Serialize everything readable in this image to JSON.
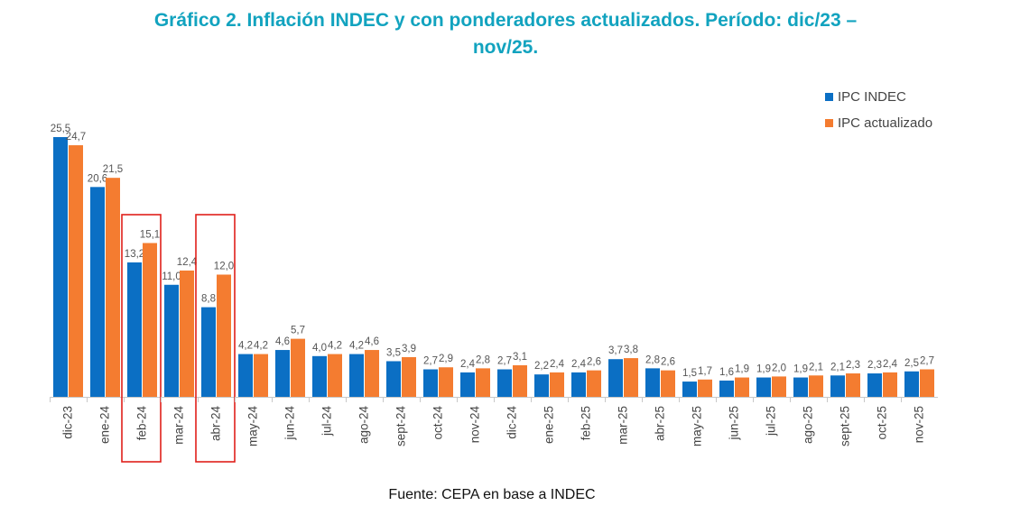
{
  "title": {
    "line1": "Gráfico 2. Inflación INDEC y con ponderadores actualizados. Período: dic/23 –",
    "line2": "nov/25."
  },
  "source": "Fuente: CEPA en base a INDEC",
  "colors": {
    "title": "#12a3bf",
    "indec": "#0b6fc4",
    "actualizado": "#f47c30",
    "highlight": "#e0201b"
  },
  "chart_data": {
    "type": "bar",
    "categories": [
      "dic-23",
      "ene-24",
      "feb-24",
      "mar-24",
      "abr-24",
      "may-24",
      "jun-24",
      "jul-24",
      "ago-24",
      "sept-24",
      "oct-24",
      "nov-24",
      "dic-24",
      "ene-25",
      "feb-25",
      "mar-25",
      "abr-25",
      "may-25",
      "jun-25",
      "jul-25",
      "ago-25",
      "sept-25",
      "oct-25",
      "nov-25"
    ],
    "series": [
      {
        "name": "IPC INDEC",
        "values": [
          25.5,
          20.6,
          13.2,
          11.0,
          8.8,
          4.2,
          4.6,
          4.0,
          4.2,
          3.5,
          2.7,
          2.4,
          2.7,
          2.2,
          2.4,
          3.7,
          2.8,
          1.5,
          1.6,
          1.9,
          1.9,
          2.1,
          2.3,
          2.5
        ],
        "labels": [
          "25,5",
          "20,6",
          "13,2",
          "11,0",
          "8,8",
          "4,2",
          "4,6",
          "4,0",
          "4,2",
          "3,5",
          "2,7",
          "2,4",
          "2,7",
          "2,2",
          "2,4",
          "3,7",
          "2,8",
          "1,5",
          "1,6",
          "1,9",
          "1,9",
          "2,1",
          "2,3",
          "2,5"
        ]
      },
      {
        "name": "IPC actualizado",
        "values": [
          24.7,
          21.5,
          15.1,
          12.4,
          12.0,
          4.2,
          5.7,
          4.2,
          4.6,
          3.9,
          2.9,
          2.8,
          3.1,
          2.4,
          2.6,
          3.8,
          2.6,
          1.7,
          1.9,
          2.0,
          2.1,
          2.3,
          2.4,
          2.7
        ],
        "labels": [
          "24,7",
          "21,5",
          "15,1",
          "12,4",
          "12,0",
          "4,2",
          "5,7",
          "4,2",
          "4,6",
          "3,9",
          "2,9",
          "2,8",
          "3,1",
          "2,4",
          "2,6",
          "3,8",
          "2,6",
          "1,7",
          "1,9",
          "2,0",
          "2,1",
          "2,3",
          "2,4",
          "2,7"
        ]
      }
    ],
    "highlighted": [
      "feb-24",
      "abr-24"
    ],
    "ylim": [
      0,
      25.5
    ],
    "grid": false,
    "legend": "top-right"
  }
}
